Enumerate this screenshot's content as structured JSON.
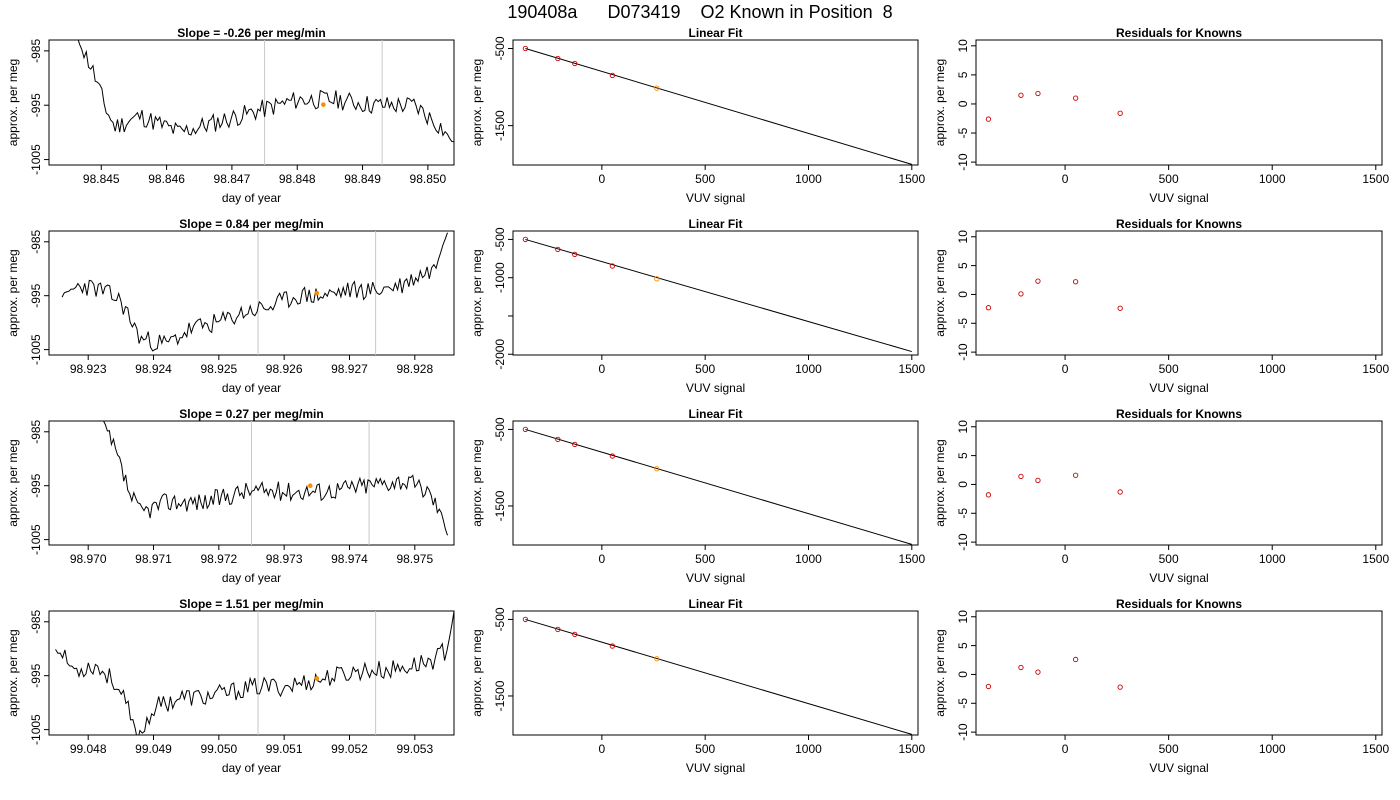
{
  "page_title": "190408a      D073419    O2 Known in Position  8",
  "chart_data": [
    {
      "type": "line",
      "row": 0,
      "col": 0,
      "title": "Slope =  -0.26  per meg/min",
      "xlabel": "day of year",
      "ylabel": "approx. per meg",
      "xlim": [
        98.8442,
        98.8504
      ],
      "ylim": [
        -1006,
        -983
      ],
      "xticks": [
        98.845,
        98.846,
        98.847,
        98.848,
        98.849,
        98.85
      ],
      "xtick_labels": [
        "98.845",
        "98.846",
        "98.847",
        "98.848",
        "98.849",
        "98.850"
      ],
      "yticks": [
        -985,
        -995,
        -1005
      ],
      "ytick_labels": [
        "-985",
        "-995",
        "-1005"
      ],
      "vlines": [
        98.8475,
        98.8493
      ],
      "marker": {
        "x": 98.8484,
        "y": -994.9,
        "color": "#ff8c00"
      },
      "x": [
        98.8446,
        98.84485,
        98.84505,
        98.8452,
        98.8456,
        98.8462,
        98.8468,
        98.8474,
        98.848,
        98.8486,
        98.8492,
        98.8498,
        98.8502,
        98.8504
      ],
      "y": [
        -982,
        -988,
        -995,
        -999,
        -997,
        -1000,
        -998,
        -996,
        -994,
        -994,
        -995,
        -995,
        -999,
        -1002
      ],
      "noise": 1.8,
      "seed": 11
    },
    {
      "type": "scatter",
      "row": 0,
      "col": 1,
      "title": "Linear Fit",
      "xlabel": "VUV signal",
      "ylabel": "approx. per meg",
      "xlim": [
        -430,
        1530
      ],
      "ylim": [
        -2010,
        -390
      ],
      "xticks": [
        0,
        500,
        1000,
        1500
      ],
      "xtick_labels": [
        "0",
        "500",
        "1000",
        "1500"
      ],
      "yticks": [
        -500,
        -1500
      ],
      "ytick_labels": [
        "-500",
        "-1500"
      ],
      "points": {
        "x": [
          -370,
          -213,
          -131,
          51,
          266
        ],
        "y": [
          -500,
          -630,
          -695,
          -848,
          -1014
        ]
      },
      "highlight_index": 4,
      "fit_line": {
        "x": [
          -370,
          1500
        ],
        "y": [
          -500,
          -2002
        ]
      }
    },
    {
      "type": "scatter",
      "row": 0,
      "col": 2,
      "title": "Residuals for Knowns",
      "xlabel": "VUV signal",
      "ylabel": "approx. per meg",
      "xlim": [
        -430,
        1530
      ],
      "ylim": [
        -10.5,
        11
      ],
      "xticks": [
        0,
        500,
        1000,
        1500
      ],
      "xtick_labels": [
        "0",
        "500",
        "1000",
        "1500"
      ],
      "yticks": [
        -10,
        -5,
        0,
        5,
        10
      ],
      "ytick_labels": [
        "-10",
        "-5",
        "0",
        "5",
        "10"
      ],
      "points": {
        "x": [
          -370,
          -213,
          -131,
          51,
          266
        ],
        "y": [
          -2.6,
          1.5,
          1.8,
          1.0,
          -1.6
        ]
      }
    },
    {
      "type": "line",
      "row": 1,
      "col": 0,
      "title": "Slope =  0.84  per meg/min",
      "xlabel": "day of year",
      "ylabel": "approx. per meg",
      "xlim": [
        98.9224,
        98.9286
      ],
      "ylim": [
        -1006,
        -983
      ],
      "xticks": [
        98.923,
        98.924,
        98.925,
        98.926,
        98.927,
        98.928
      ],
      "xtick_labels": [
        "98.923",
        "98.924",
        "98.925",
        "98.926",
        "98.927",
        "98.928"
      ],
      "yticks": [
        -985,
        -995,
        -1005
      ],
      "ytick_labels": [
        "-985",
        "-995",
        "-1005"
      ],
      "vlines": [
        98.9256,
        98.9274
      ],
      "marker": {
        "x": 98.9265,
        "y": -994.5,
        "color": "#ff8c00"
      },
      "x": [
        98.9226,
        98.9229,
        98.9232,
        98.9235,
        98.9238,
        98.9242,
        98.9246,
        98.925,
        98.9254,
        98.9258,
        98.9262,
        98.9266,
        98.927,
        98.9274,
        98.9278,
        98.9281,
        98.9283,
        98.9285
      ],
      "y": [
        -995,
        -993,
        -994,
        -996,
        -1003,
        -1004,
        -1001,
        -1000,
        -998,
        -997,
        -995,
        -995,
        -994,
        -994,
        -993,
        -991,
        -990,
        -983
      ],
      "noise": 1.8,
      "seed": 23
    },
    {
      "type": "scatter",
      "row": 1,
      "col": 1,
      "title": "Linear Fit",
      "xlabel": "VUV signal",
      "ylabel": "approx. per meg",
      "xlim": [
        -430,
        1530
      ],
      "ylim": [
        -2010,
        -390
      ],
      "xticks": [
        0,
        500,
        1000,
        1500
      ],
      "xtick_labels": [
        "0",
        "500",
        "1000",
        "1500"
      ],
      "yticks": [
        -500,
        -1000,
        -1500,
        -2000
      ],
      "ytick_labels": [
        "-500",
        "-1000",
        "",
        "-2000"
      ],
      "points": {
        "x": [
          -370,
          -213,
          -131,
          51,
          266
        ],
        "y": [
          -500,
          -630,
          -695,
          -848,
          -1014
        ]
      },
      "highlight_index": 4,
      "fit_line": {
        "x": [
          -370,
          1500
        ],
        "y": [
          -500,
          -1965
        ]
      }
    },
    {
      "type": "scatter",
      "row": 1,
      "col": 2,
      "title": "Residuals for Knowns",
      "xlabel": "VUV signal",
      "ylabel": "approx. per meg",
      "xlim": [
        -430,
        1530
      ],
      "ylim": [
        -10.5,
        11
      ],
      "xticks": [
        0,
        500,
        1000,
        1500
      ],
      "xtick_labels": [
        "0",
        "500",
        "1000",
        "1500"
      ],
      "yticks": [
        -10,
        -5,
        0,
        5,
        10
      ],
      "ytick_labels": [
        "-10",
        "-5",
        "0",
        "5",
        "10"
      ],
      "points": {
        "x": [
          -370,
          -213,
          -131,
          51,
          266
        ],
        "y": [
          -2.3,
          0.1,
          2.3,
          2.2,
          -2.4
        ]
      }
    },
    {
      "type": "line",
      "row": 2,
      "col": 0,
      "title": "Slope =  0.27  per meg/min",
      "xlabel": "day of year",
      "ylabel": "approx. per meg",
      "xlim": [
        98.9694,
        98.9756
      ],
      "ylim": [
        -1006,
        -983
      ],
      "xticks": [
        98.97,
        98.971,
        98.972,
        98.973,
        98.974,
        98.975
      ],
      "xtick_labels": [
        "98.970",
        "98.971",
        "98.972",
        "98.973",
        "98.974",
        "98.975"
      ],
      "yticks": [
        -985,
        -995,
        -1005
      ],
      "ytick_labels": [
        "-985",
        "-995",
        "-1005"
      ],
      "vlines": [
        98.9725,
        98.9743
      ],
      "marker": {
        "x": 98.9734,
        "y": -995,
        "color": "#ff8c00"
      },
      "x": [
        98.9702,
        98.97045,
        98.97065,
        98.9708,
        98.9712,
        98.9718,
        98.9724,
        98.973,
        98.9736,
        98.9742,
        98.9748,
        98.9752,
        98.9754,
        98.9755
      ],
      "y": [
        -982,
        -990,
        -997,
        -1000,
        -998,
        -998,
        -996,
        -996,
        -996,
        -995,
        -994,
        -996,
        -1000,
        -1004
      ],
      "noise": 1.8,
      "seed": 37
    },
    {
      "type": "scatter",
      "row": 2,
      "col": 1,
      "title": "Linear Fit",
      "xlabel": "VUV signal",
      "ylabel": "approx. per meg",
      "xlim": [
        -430,
        1530
      ],
      "ylim": [
        -2010,
        -390
      ],
      "xticks": [
        0,
        500,
        1000,
        1500
      ],
      "xtick_labels": [
        "0",
        "500",
        "1000",
        "1500"
      ],
      "yticks": [
        -500,
        -1500
      ],
      "ytick_labels": [
        "-500",
        "-1500"
      ],
      "points": {
        "x": [
          -370,
          -213,
          -131,
          51,
          266
        ],
        "y": [
          -500,
          -630,
          -695,
          -848,
          -1014
        ]
      },
      "highlight_index": 4,
      "fit_line": {
        "x": [
          -370,
          1500
        ],
        "y": [
          -500,
          -2002
        ]
      }
    },
    {
      "type": "scatter",
      "row": 2,
      "col": 2,
      "title": "Residuals for Knowns",
      "xlabel": "VUV signal",
      "ylabel": "approx. per meg",
      "xlim": [
        -430,
        1530
      ],
      "ylim": [
        -10.5,
        11
      ],
      "xticks": [
        0,
        500,
        1000,
        1500
      ],
      "xtick_labels": [
        "0",
        "500",
        "1000",
        "1500"
      ],
      "yticks": [
        -10,
        -5,
        0,
        5,
        10
      ],
      "ytick_labels": [
        "-10",
        "-5",
        "0",
        "5",
        "10"
      ],
      "points": {
        "x": [
          -370,
          -213,
          -131,
          51,
          266
        ],
        "y": [
          -1.8,
          1.4,
          0.7,
          1.6,
          -1.3
        ]
      }
    },
    {
      "type": "line",
      "row": 3,
      "col": 0,
      "title": "Slope =  1.51  per meg/min",
      "xlabel": "day of year",
      "ylabel": "approx. per meg",
      "xlim": [
        99.0474,
        99.0536
      ],
      "ylim": [
        -1006,
        -983
      ],
      "xticks": [
        99.048,
        99.049,
        99.05,
        99.051,
        99.052,
        99.053
      ],
      "xtick_labels": [
        "99.048",
        "99.049",
        "99.050",
        "99.051",
        "99.052",
        "99.053"
      ],
      "yticks": [
        -985,
        -995,
        -1005
      ],
      "ytick_labels": [
        "-985",
        "-995",
        "-1005"
      ],
      "vlines": [
        99.0506,
        99.0524
      ],
      "marker": {
        "x": 99.0515,
        "y": -995.5,
        "color": "#ff8c00"
      },
      "x": [
        99.0475,
        99.0478,
        99.0481,
        99.0484,
        99.0486,
        99.04875,
        99.049,
        99.0494,
        99.0498,
        99.0502,
        99.0506,
        99.051,
        99.0514,
        99.0518,
        99.0522,
        99.0526,
        99.053,
        99.0533,
        99.0535,
        99.0536
      ],
      "y": [
        -990,
        -994,
        -993,
        -996,
        -1001,
        -1007,
        -1001,
        -999,
        -999,
        -998,
        -997,
        -997,
        -996,
        -995,
        -994,
        -994,
        -993,
        -992,
        -990,
        -983
      ],
      "noise": 1.8,
      "seed": 53
    },
    {
      "type": "scatter",
      "row": 3,
      "col": 1,
      "title": "Linear Fit",
      "xlabel": "VUV signal",
      "ylabel": "approx. per meg",
      "xlim": [
        -430,
        1530
      ],
      "ylim": [
        -2010,
        -390
      ],
      "xticks": [
        0,
        500,
        1000,
        1500
      ],
      "xtick_labels": [
        "0",
        "500",
        "1000",
        "1500"
      ],
      "yticks": [
        -500,
        -1500
      ],
      "ytick_labels": [
        "-500",
        "-1500"
      ],
      "points": {
        "x": [
          -370,
          -213,
          -131,
          51,
          266
        ],
        "y": [
          -500,
          -630,
          -695,
          -848,
          -1014
        ]
      },
      "highlight_index": 4,
      "fit_line": {
        "x": [
          -370,
          1500
        ],
        "y": [
          -500,
          -2002
        ]
      }
    },
    {
      "type": "scatter",
      "row": 3,
      "col": 2,
      "title": "Residuals for Knowns",
      "xlabel": "VUV signal",
      "ylabel": "approx. per meg",
      "xlim": [
        -430,
        1530
      ],
      "ylim": [
        -10.5,
        11
      ],
      "xticks": [
        0,
        500,
        1000,
        1500
      ],
      "xtick_labels": [
        "0",
        "500",
        "1000",
        "1500"
      ],
      "yticks": [
        -10,
        -5,
        0,
        5,
        10
      ],
      "ytick_labels": [
        "-10",
        "-5",
        "0",
        "5",
        "10"
      ],
      "points": {
        "x": [
          -370,
          -213,
          -131,
          51,
          266
        ],
        "y": [
          -2.1,
          1.2,
          0.4,
          2.6,
          -2.2
        ]
      }
    }
  ],
  "colors": {
    "line": "#000000",
    "point": "#cc0000",
    "highlight": "#ff8c00",
    "vline": "#c8c8c8"
  }
}
